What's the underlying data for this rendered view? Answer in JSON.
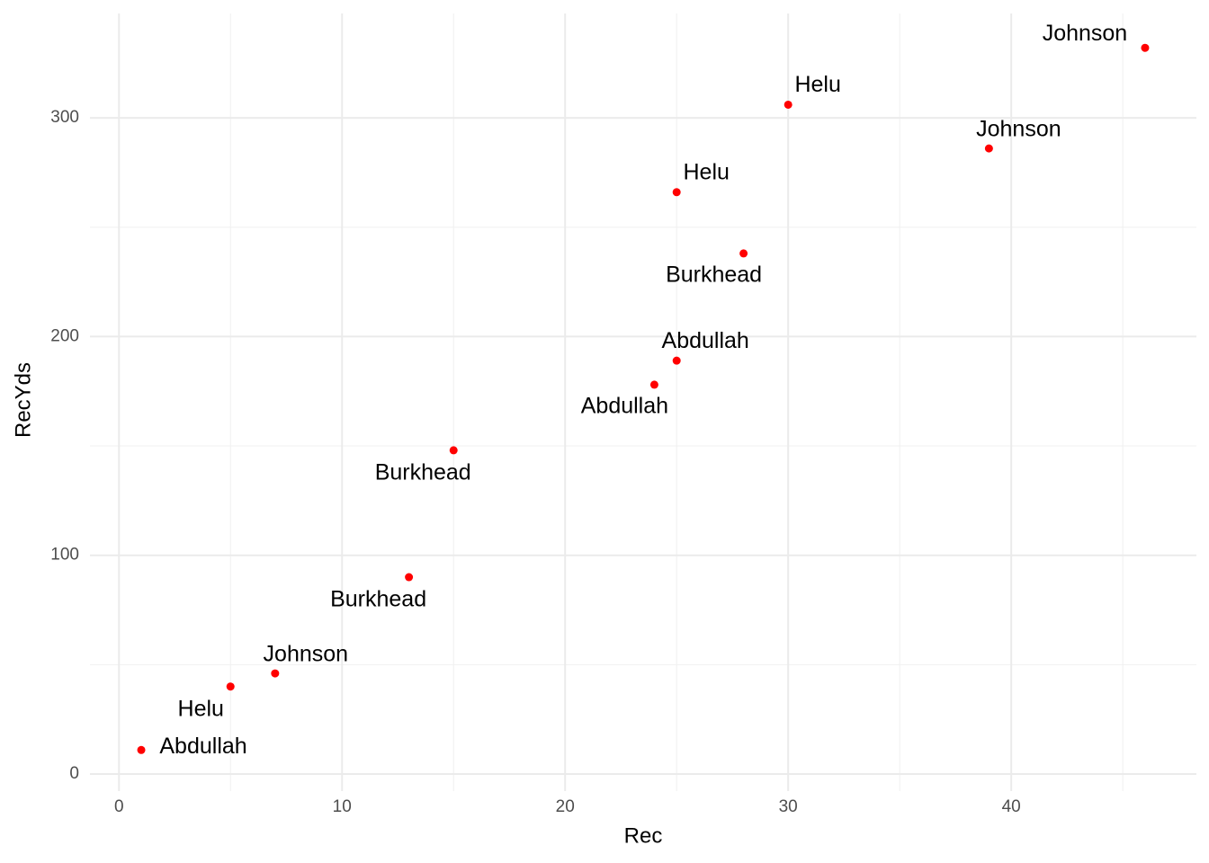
{
  "chart_data": {
    "type": "scatter",
    "x_label": "Rec",
    "y_label": "RecYds",
    "series": [
      {
        "color": "#ff0000",
        "x": [
          1,
          5,
          7,
          13,
          15,
          24,
          25,
          28,
          25,
          30,
          39,
          46
        ],
        "values": [
          11,
          40,
          46,
          90,
          148,
          178,
          189,
          238,
          266,
          306,
          286,
          332
        ],
        "labels": [
          "Abdullah",
          "Helu",
          "Johnson",
          "Burkhead",
          "Burkhead",
          "Abdullah",
          "Abdullah",
          "Burkhead",
          "Helu",
          "Helu",
          "Johnson",
          "Johnson"
        ]
      }
    ],
    "xlim": [
      -1.3,
      48.3
    ],
    "xticks": [
      0,
      10,
      20,
      30,
      40
    ],
    "ylim": [
      -7.8,
      347.7
    ],
    "yticks": [
      0,
      100,
      200,
      300
    ],
    "x_minor_gridlines": [
      5,
      15,
      25,
      35,
      45
    ],
    "y_minor_gridlines": [
      50,
      150,
      250
    ],
    "grid": true
  }
}
